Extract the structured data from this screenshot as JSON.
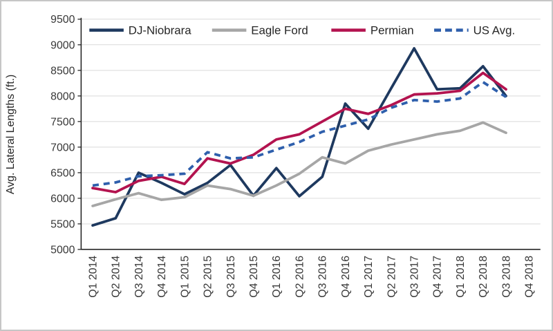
{
  "chart_data": {
    "type": "line",
    "title": "",
    "xlabel": "",
    "ylabel": "Avg. Lateral Lengths (ft.)",
    "ylim": [
      5000,
      9500
    ],
    "yticks": [
      5000,
      5500,
      6000,
      6500,
      7000,
      7500,
      8000,
      8500,
      9000,
      9500
    ],
    "grid": "horizontal",
    "legend_position": "top-inside-horizontal",
    "categories": [
      "Q1 2014",
      "Q2 2014",
      "Q3 2014",
      "Q4 2014",
      "Q1 2015",
      "Q2 2015",
      "Q3 2015",
      "Q4 2015",
      "Q1 2016",
      "Q2 2016",
      "Q3 2016",
      "Q4 2016",
      "Q1 2017",
      "Q2 2017",
      "Q3 2017",
      "Q4 2017",
      "Q1 2018",
      "Q2 2018",
      "Q3 2018",
      "Q4 2018"
    ],
    "series": [
      {
        "name": "DJ-Niobrara",
        "color": "#1e395f",
        "style": "solid",
        "values": [
          5470,
          5610,
          6500,
          6300,
          6080,
          6300,
          6650,
          6050,
          6590,
          6040,
          6420,
          7850,
          7360,
          8150,
          8930,
          8130,
          8150,
          8580,
          8000,
          null
        ]
      },
      {
        "name": "Eagle Ford",
        "color": "#a6a6a6",
        "style": "solid",
        "values": [
          5850,
          5980,
          6100,
          5970,
          6020,
          6250,
          6180,
          6050,
          6250,
          6480,
          6800,
          6680,
          6930,
          7050,
          7150,
          7250,
          7320,
          7480,
          7280,
          null
        ]
      },
      {
        "name": "Permian",
        "color": "#b3134f",
        "style": "solid",
        "values": [
          6200,
          6120,
          6340,
          6420,
          6280,
          6780,
          6680,
          6850,
          7150,
          7250,
          7500,
          7750,
          7650,
          7820,
          8030,
          8050,
          8100,
          8450,
          8130,
          null
        ]
      },
      {
        "name": "US Avg.",
        "color": "#2e5fac",
        "style": "dashed",
        "values": [
          6250,
          6310,
          6430,
          6450,
          6480,
          6900,
          6780,
          6800,
          6950,
          7100,
          7300,
          7420,
          7540,
          7770,
          7920,
          7890,
          7950,
          8270,
          7980,
          null
        ]
      }
    ]
  },
  "style": {
    "gridline_color": "#d9d9d9",
    "axis_color": "#262626",
    "tick_label_color": "#383838",
    "frame_border_color": "#c6c6c6",
    "background": "#ffffff"
  }
}
